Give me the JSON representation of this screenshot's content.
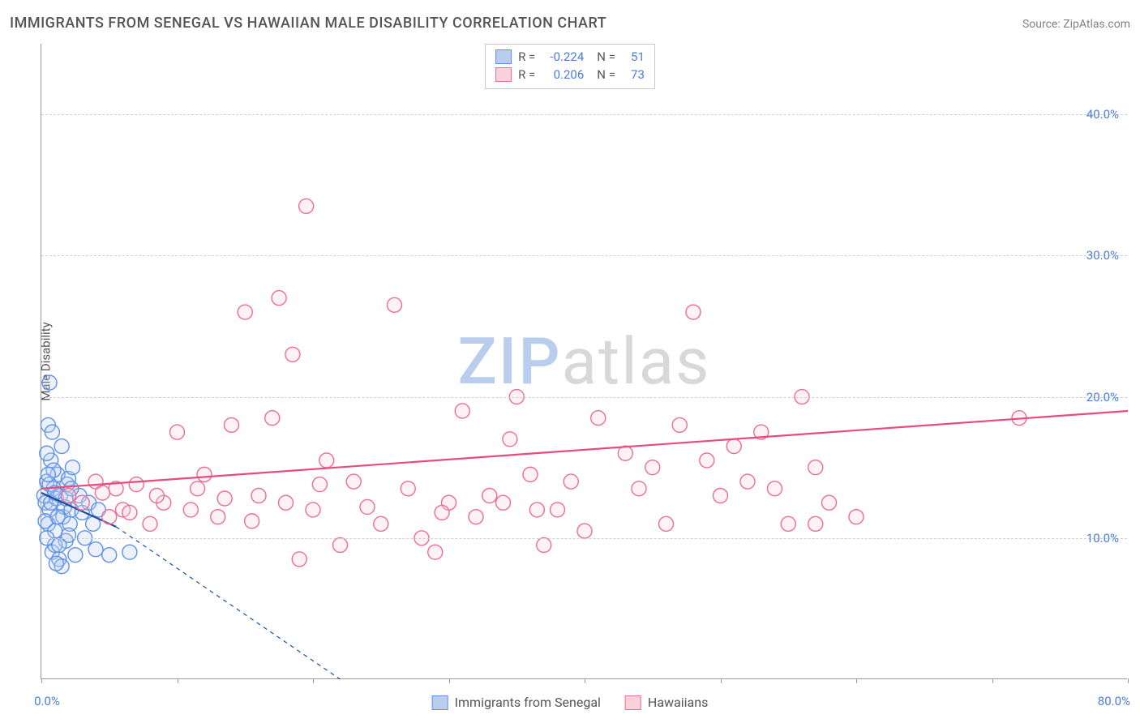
{
  "title": "IMMIGRANTS FROM SENEGAL VS HAWAIIAN MALE DISABILITY CORRELATION CHART",
  "source": "Source: ZipAtlas.com",
  "ylabel": "Male Disability",
  "watermark": {
    "part1": "ZIP",
    "part2": "atlas"
  },
  "chart": {
    "type": "scatter",
    "xlim": [
      0,
      80
    ],
    "ylim": [
      0,
      45
    ],
    "yticks": [
      {
        "v": 10,
        "label": "10.0%"
      },
      {
        "v": 20,
        "label": "20.0%"
      },
      {
        "v": 30,
        "label": "30.0%"
      },
      {
        "v": 40,
        "label": "40.0%"
      }
    ],
    "xticks": [
      0,
      10,
      20,
      30,
      40,
      50,
      60,
      70,
      80
    ],
    "xtick_labels": {
      "first": "0.0%",
      "last": "80.0%"
    },
    "grid_color": "#d0d0d0",
    "axis_color": "#9a9a9a",
    "background_color": "#ffffff",
    "tick_label_color": "#4a7ed8",
    "tick_label_fontsize": 15,
    "title_fontsize": 18,
    "title_color": "#555555",
    "marker_radius": 9,
    "marker_stroke_width": 1.4,
    "marker_fill_opacity": 0.28,
    "trend_line_width": 2.2,
    "trend_dash_width": 1.2
  },
  "legend_top": {
    "rows": [
      {
        "swatch_fill": "#b9cdef",
        "swatch_stroke": "#5c93e6",
        "r_label": "R =",
        "r_val": "-0.224",
        "n_label": "N =",
        "n_val": "51"
      },
      {
        "swatch_fill": "#fbd1db",
        "swatch_stroke": "#ec6d94",
        "r_label": "R =",
        "r_val": "0.206",
        "n_label": "N =",
        "n_val": "73"
      }
    ]
  },
  "legend_bottom": {
    "items": [
      {
        "swatch_fill": "#b9cdef",
        "swatch_stroke": "#5c93e6",
        "label": "Immigrants from Senegal"
      },
      {
        "swatch_fill": "#fbd1db",
        "swatch_stroke": "#ec6d94",
        "label": "Hawaiians"
      }
    ]
  },
  "series": [
    {
      "name": "Immigrants from Senegal",
      "color_stroke": "#5c93e6",
      "color_fill": "#b9cdef",
      "trend_color": "#1b4f9c",
      "trend": {
        "x1": 0,
        "y1": 13.2,
        "x2": 5.5,
        "y2": 10.8,
        "dash_to_x": 22,
        "dash_to_y": 0
      },
      "points": [
        [
          0.2,
          13.0
        ],
        [
          0.3,
          12.5
        ],
        [
          0.4,
          14.0
        ],
        [
          0.5,
          11.0
        ],
        [
          0.6,
          12.0
        ],
        [
          0.7,
          15.5
        ],
        [
          0.8,
          9.0
        ],
        [
          0.9,
          13.5
        ],
        [
          1.0,
          10.5
        ],
        [
          1.1,
          12.8
        ],
        [
          1.2,
          14.5
        ],
        [
          1.3,
          8.5
        ],
        [
          1.4,
          13.0
        ],
        [
          1.5,
          16.5
        ],
        [
          1.6,
          11.5
        ],
        [
          1.7,
          12.2
        ],
        [
          1.8,
          9.8
        ],
        [
          1.9,
          13.8
        ],
        [
          2.0,
          14.2
        ],
        [
          2.1,
          11.0
        ],
        [
          2.2,
          12.0
        ],
        [
          2.3,
          15.0
        ],
        [
          0.5,
          18.0
        ],
        [
          0.6,
          21.0
        ],
        [
          2.5,
          8.8
        ],
        [
          2.8,
          13.0
        ],
        [
          3.0,
          11.8
        ],
        [
          3.2,
          10.0
        ],
        [
          3.5,
          12.5
        ],
        [
          0.4,
          16.0
        ],
        [
          4.0,
          9.2
        ],
        [
          4.2,
          12.0
        ],
        [
          0.8,
          17.5
        ],
        [
          1.0,
          9.5
        ],
        [
          1.5,
          8.0
        ],
        [
          2.0,
          10.2
        ],
        [
          0.3,
          11.2
        ],
        [
          0.6,
          13.8
        ],
        [
          0.9,
          14.8
        ],
        [
          1.2,
          11.5
        ],
        [
          1.8,
          12.8
        ],
        [
          5.0,
          8.8
        ],
        [
          0.4,
          10.0
        ],
        [
          0.7,
          12.5
        ],
        [
          1.0,
          13.2
        ],
        [
          1.3,
          9.5
        ],
        [
          2.2,
          13.5
        ],
        [
          3.8,
          11.0
        ],
        [
          6.5,
          9.0
        ],
        [
          1.1,
          8.2
        ],
        [
          0.5,
          14.5
        ]
      ]
    },
    {
      "name": "Hawaiians",
      "color_stroke": "#ec6d94",
      "color_fill": "#fbd1db",
      "trend_color": "#e94b7a",
      "trend": {
        "x1": 0,
        "y1": 13.5,
        "x2": 80,
        "y2": 19.0
      },
      "points": [
        [
          2.0,
          13.0
        ],
        [
          3.0,
          12.5
        ],
        [
          4.0,
          14.0
        ],
        [
          5.0,
          11.5
        ],
        [
          5.5,
          13.5
        ],
        [
          6.0,
          12.0
        ],
        [
          7.0,
          13.8
        ],
        [
          8.0,
          11.0
        ],
        [
          9.0,
          12.5
        ],
        [
          10.0,
          17.5
        ],
        [
          11.0,
          12.0
        ],
        [
          12.0,
          14.5
        ],
        [
          13.0,
          11.5
        ],
        [
          14.0,
          18.0
        ],
        [
          15.0,
          26.0
        ],
        [
          16.0,
          13.0
        ],
        [
          17.0,
          18.5
        ],
        [
          17.5,
          27.0
        ],
        [
          18.0,
          12.5
        ],
        [
          18.5,
          23.0
        ],
        [
          19.0,
          8.5
        ],
        [
          19.5,
          33.5
        ],
        [
          20.0,
          12.0
        ],
        [
          21.0,
          15.5
        ],
        [
          22.0,
          9.5
        ],
        [
          23.0,
          14.0
        ],
        [
          25.0,
          11.0
        ],
        [
          26.0,
          26.5
        ],
        [
          27.0,
          13.5
        ],
        [
          28.0,
          10.0
        ],
        [
          29.0,
          9.0
        ],
        [
          30.0,
          12.5
        ],
        [
          31.0,
          19.0
        ],
        [
          32.0,
          11.5
        ],
        [
          33.0,
          13.0
        ],
        [
          34.5,
          17.0
        ],
        [
          35.0,
          20.0
        ],
        [
          36.0,
          14.5
        ],
        [
          37.0,
          9.5
        ],
        [
          38.0,
          12.0
        ],
        [
          40.0,
          10.5
        ],
        [
          41.0,
          18.5
        ],
        [
          43.0,
          16.0
        ],
        [
          44.0,
          13.5
        ],
        [
          45.0,
          15.0
        ],
        [
          46.0,
          11.0
        ],
        [
          47.0,
          18.0
        ],
        [
          48.0,
          26.0
        ],
        [
          49.0,
          15.5
        ],
        [
          50.0,
          13.0
        ],
        [
          52.0,
          14.0
        ],
        [
          53.0,
          17.5
        ],
        [
          54.0,
          13.5
        ],
        [
          55.0,
          11.0
        ],
        [
          56.0,
          20.0
        ],
        [
          57.0,
          15.0
        ],
        [
          58.0,
          12.5
        ],
        [
          60.0,
          11.5
        ],
        [
          72.0,
          18.5
        ],
        [
          57.0,
          11.0
        ],
        [
          4.5,
          13.2
        ],
        [
          6.5,
          11.8
        ],
        [
          8.5,
          13.0
        ],
        [
          11.5,
          13.5
        ],
        [
          13.5,
          12.8
        ],
        [
          15.5,
          11.2
        ],
        [
          20.5,
          13.8
        ],
        [
          24.0,
          12.2
        ],
        [
          29.5,
          11.8
        ],
        [
          34.0,
          12.5
        ],
        [
          39.0,
          14.0
        ],
        [
          51.0,
          16.5
        ],
        [
          36.5,
          12.0
        ]
      ]
    }
  ]
}
